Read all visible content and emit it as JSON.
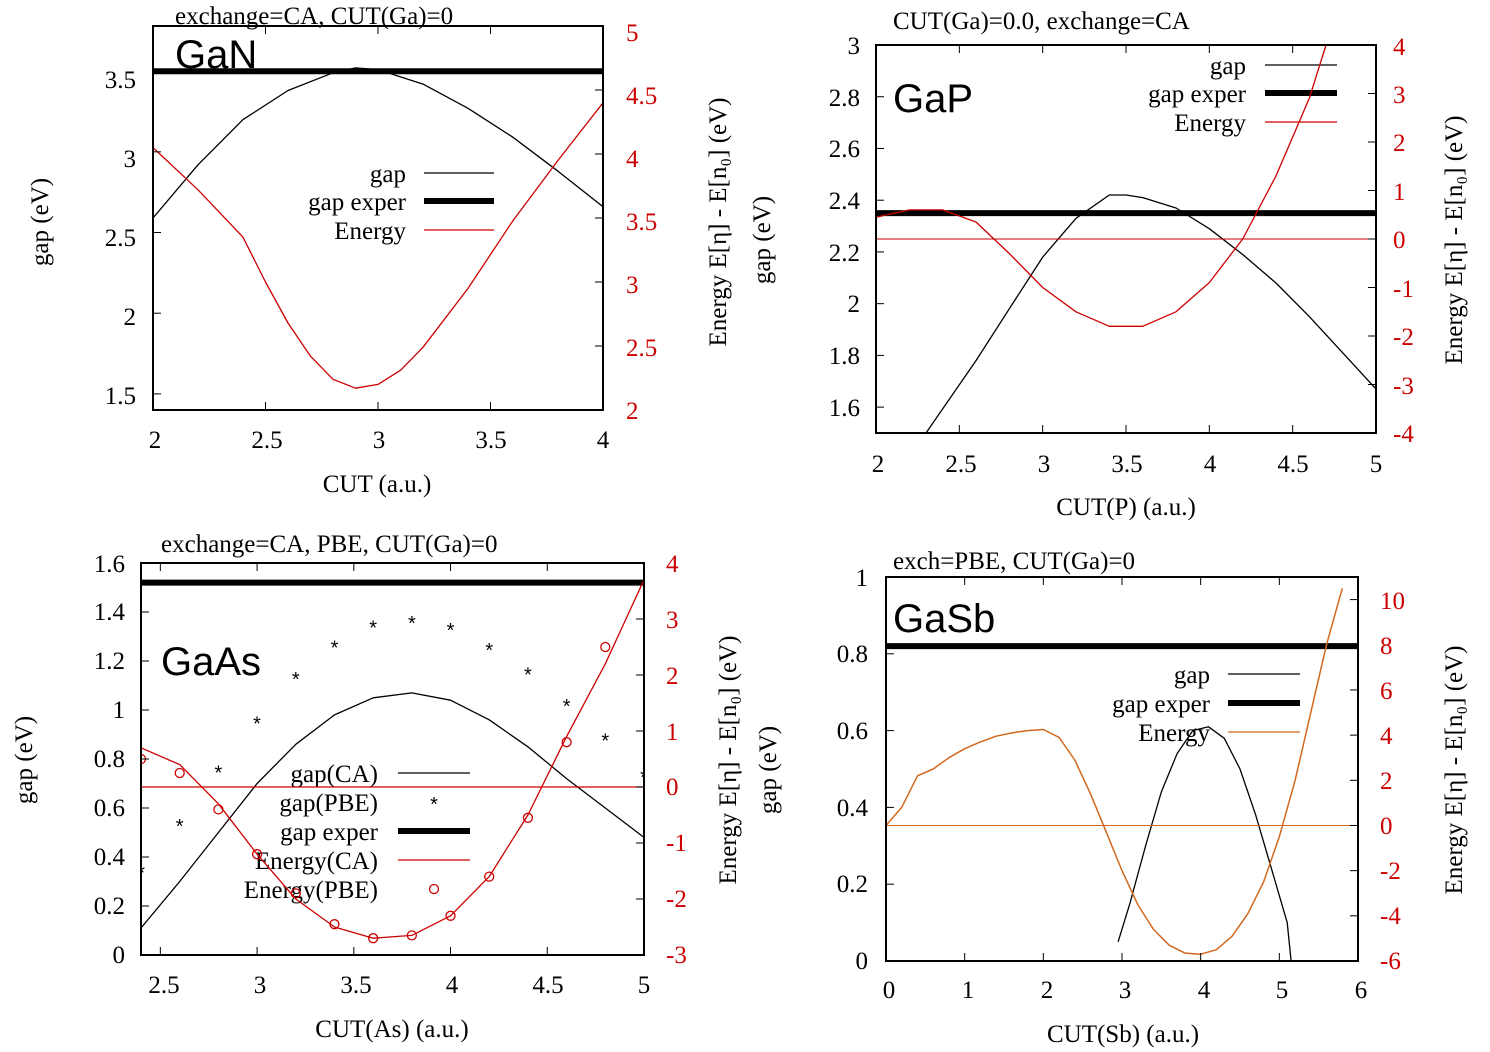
{
  "chart_data": [
    {
      "type": "line",
      "title": "exchange=CA, CUT(Ga)=0",
      "label": "GaN",
      "xlabel": "CUT (a.u.)",
      "ylabel": "gap (eV)",
      "y2label": "Energy E[η] - E[n₀] (eV)",
      "xlim": [
        2,
        4
      ],
      "ylim": [
        1.4,
        3.78
      ],
      "y2lim": [
        2,
        5
      ],
      "xticks": [
        "2",
        "2.5",
        "3",
        "3.5",
        "4"
      ],
      "yticks": [
        "1.5",
        "2",
        "2.5",
        "3",
        "3.5"
      ],
      "y2ticks": [
        "2",
        "2.5",
        "3",
        "3.5",
        "4",
        "4.5",
        "5"
      ],
      "legend_placement": "center-right",
      "colors": {
        "gap": "#000000",
        "gap_exper": "#000000",
        "energy": "#cc0000"
      },
      "series": [
        {
          "name": "gap",
          "axis": "y",
          "x": [
            2.0,
            2.2,
            2.4,
            2.6,
            2.8,
            2.9,
            3.0,
            3.2,
            3.4,
            3.6,
            3.8,
            4.0
          ],
          "y": [
            2.59,
            2.92,
            3.2,
            3.38,
            3.49,
            3.52,
            3.51,
            3.42,
            3.27,
            3.09,
            2.88,
            2.66
          ]
        },
        {
          "name": "gap exper",
          "axis": "y",
          "x": [
            2.0,
            4.0
          ],
          "y": [
            3.5,
            3.5
          ]
        },
        {
          "name": "Energy",
          "axis": "y2",
          "x": [
            2.0,
            2.2,
            2.4,
            2.5,
            2.6,
            2.7,
            2.8,
            2.9,
            3.0,
            3.1,
            3.2,
            3.4,
            3.6,
            3.8,
            4.0
          ],
          "y": [
            4.05,
            3.72,
            3.35,
            3.0,
            2.68,
            2.42,
            2.24,
            2.17,
            2.2,
            2.31,
            2.49,
            2.95,
            3.48,
            3.95,
            4.4
          ]
        }
      ]
    },
    {
      "type": "line",
      "title": "CUT(Ga)=0.0, exchange=CA",
      "label": "GaP",
      "xlabel": "CUT(P) (a.u.)",
      "ylabel": "gap (eV)",
      "y2label": "Energy E[η] - E[n₀] (eV)",
      "xlim": [
        2,
        5
      ],
      "ylim": [
        1.5,
        3.0
      ],
      "y2lim": [
        -4,
        4
      ],
      "xticks": [
        "2",
        "2.5",
        "3",
        "3.5",
        "4",
        "4.5",
        "5"
      ],
      "yticks": [
        "1.6",
        "1.8",
        "2",
        "2.2",
        "2.4",
        "2.6",
        "2.8",
        "3"
      ],
      "y2ticks": [
        "-4",
        "-3",
        "-2",
        "-1",
        "0",
        "1",
        "2",
        "3",
        "4"
      ],
      "legend_placement": "top-right",
      "colors": {
        "gap": "#000000",
        "gap_exper": "#000000",
        "energy": "#cc0000"
      },
      "series": [
        {
          "name": "gap",
          "axis": "y",
          "x": [
            2.3,
            2.6,
            2.8,
            3.0,
            3.2,
            3.4,
            3.5,
            3.6,
            3.8,
            4.0,
            4.2,
            4.4,
            4.6,
            4.8,
            5.0
          ],
          "y": [
            1.5,
            1.78,
            1.98,
            2.18,
            2.33,
            2.42,
            2.42,
            2.41,
            2.37,
            2.29,
            2.19,
            2.08,
            1.95,
            1.81,
            1.67
          ]
        },
        {
          "name": "gap exper",
          "axis": "y",
          "x": [
            2.0,
            5.0
          ],
          "y": [
            2.35,
            2.35
          ]
        },
        {
          "name": "Energy",
          "axis": "y2",
          "x": [
            2.0,
            2.2,
            2.4,
            2.6,
            2.8,
            3.0,
            3.2,
            3.4,
            3.6,
            3.8,
            4.0,
            4.2,
            4.4,
            4.6,
            4.7
          ],
          "y": [
            0.45,
            0.6,
            0.6,
            0.35,
            -0.3,
            -1.0,
            -1.5,
            -1.8,
            -1.8,
            -1.5,
            -0.9,
            0.0,
            1.3,
            2.9,
            4.0
          ]
        },
        {
          "name": "",
          "axis": "y2",
          "x": [
            2.0,
            5.0
          ],
          "y": [
            0.0,
            0.0
          ]
        }
      ]
    },
    {
      "type": "line",
      "title": "exchange=CA, PBE, CUT(Ga)=0",
      "label": "GaAs",
      "xlabel": "CUT(As) (a.u.)",
      "ylabel": "gap (eV)",
      "y2label": "Energy E[η] - E[n₀] (eV)",
      "xlim": [
        2.4,
        5
      ],
      "ylim": [
        0,
        1.6
      ],
      "y2lim": [
        -3,
        4
      ],
      "xticks": [
        "2.5",
        "3",
        "3.5",
        "4",
        "4.5",
        "5"
      ],
      "yticks": [
        "0",
        "0.2",
        "0.4",
        "0.6",
        "0.8",
        "1",
        "1.2",
        "1.4",
        "1.6"
      ],
      "y2ticks": [
        "-3",
        "-2",
        "-1",
        "0",
        "1",
        "2",
        "3",
        "4"
      ],
      "legend_placement": "bottom-center",
      "colors": {
        "gap_ca": "#000000",
        "gap_pbe": "#000000",
        "gap_exper": "#000000",
        "energy_ca": "#cc0000",
        "energy_pbe": "#cc0000"
      },
      "series": [
        {
          "name": "gap(CA)",
          "axis": "y",
          "x": [
            2.4,
            2.6,
            2.8,
            3.0,
            3.2,
            3.4,
            3.6,
            3.8,
            4.0,
            4.2,
            4.4,
            4.6,
            4.8,
            5.0
          ],
          "y": [
            0.11,
            0.3,
            0.5,
            0.7,
            0.86,
            0.98,
            1.05,
            1.07,
            1.04,
            0.96,
            0.85,
            0.72,
            0.6,
            0.48
          ]
        },
        {
          "name": "gap(PBE)",
          "axis": "y",
          "x": [
            2.4,
            2.6,
            2.8,
            3.0,
            3.2,
            3.4,
            3.6,
            3.8,
            4.0,
            4.2,
            4.4,
            4.6,
            4.8,
            5.0
          ],
          "y": [
            0.34,
            0.53,
            0.75,
            0.95,
            1.13,
            1.26,
            1.34,
            1.36,
            1.33,
            1.25,
            1.15,
            1.02,
            0.88,
            0.73
          ]
        },
        {
          "name": "gap exper",
          "axis": "y",
          "x": [
            2.4,
            5.0
          ],
          "y": [
            1.52,
            1.52
          ]
        },
        {
          "name": "Energy(CA)",
          "axis": "y2",
          "x": [
            2.4,
            2.6,
            2.8,
            3.0,
            3.2,
            3.4,
            3.6,
            3.8,
            4.0,
            4.2,
            4.4,
            4.6,
            4.8,
            5.0
          ],
          "y": [
            0.7,
            0.4,
            -0.3,
            -1.2,
            -2.0,
            -2.5,
            -2.7,
            -2.65,
            -2.3,
            -1.6,
            -0.5,
            0.9,
            2.2,
            3.7
          ]
        },
        {
          "name": "Energy(PBE)",
          "axis": "y2",
          "x": [
            2.4,
            2.6,
            2.8,
            3.0,
            3.2,
            3.4,
            3.6,
            3.8,
            4.0,
            4.2,
            4.4,
            4.6,
            4.8
          ],
          "y": [
            0.5,
            0.25,
            -0.4,
            -1.2,
            -1.9,
            -2.45,
            -2.7,
            -2.65,
            -2.3,
            -1.6,
            -0.55,
            0.8,
            2.5
          ]
        },
        {
          "name": "",
          "axis": "y2",
          "x": [
            2.4,
            5.0
          ],
          "y": [
            0.0,
            0.0
          ]
        }
      ]
    },
    {
      "type": "line",
      "title": "exch=PBE, CUT(Ga)=0",
      "label": "GaSb",
      "xlabel": "CUT(Sb) (a.u.)",
      "ylabel": "gap (eV)",
      "y2label": "Energy E[η] - E[n₀] (eV)",
      "xlim": [
        0,
        6
      ],
      "ylim": [
        0,
        1.0
      ],
      "y2lim": [
        -6,
        11
      ],
      "xticks": [
        "0",
        "1",
        "2",
        "3",
        "4",
        "5",
        "6"
      ],
      "yticks": [
        "0",
        "0.2",
        "0.4",
        "0.6",
        "0.8",
        "1"
      ],
      "y2ticks": [
        "-6",
        "-4",
        "-2",
        "0",
        "2",
        "4",
        "6",
        "8",
        "10"
      ],
      "legend_placement": "center-right",
      "colors": {
        "gap": "#000000",
        "gap_exper": "#000000",
        "energy": "#d2691e"
      },
      "series": [
        {
          "name": "gap",
          "axis": "y",
          "x": [
            2.95,
            3.1,
            3.3,
            3.5,
            3.7,
            3.9,
            4.1,
            4.3,
            4.5,
            4.7,
            4.9,
            5.1,
            5.15
          ],
          "y": [
            0.05,
            0.15,
            0.3,
            0.44,
            0.54,
            0.6,
            0.61,
            0.58,
            0.5,
            0.38,
            0.24,
            0.1,
            0.0
          ]
        },
        {
          "name": "gap exper",
          "axis": "y",
          "x": [
            0.0,
            6.0
          ],
          "y": [
            0.82,
            0.82
          ]
        },
        {
          "name": "Energy",
          "axis": "y2",
          "x": [
            0.0,
            0.2,
            0.4,
            0.6,
            0.8,
            1.0,
            1.2,
            1.4,
            1.6,
            1.8,
            2.0,
            2.2,
            2.4,
            2.6,
            2.8,
            3.0,
            3.2,
            3.4,
            3.6,
            3.8,
            4.0,
            4.2,
            4.4,
            4.6,
            4.8,
            5.0,
            5.2,
            5.4,
            5.6,
            5.8
          ],
          "y": [
            0.0,
            0.8,
            2.2,
            2.5,
            3.0,
            3.4,
            3.7,
            3.95,
            4.1,
            4.2,
            4.25,
            3.9,
            2.9,
            1.4,
            -0.3,
            -2.0,
            -3.5,
            -4.6,
            -5.3,
            -5.65,
            -5.7,
            -5.5,
            -4.9,
            -3.9,
            -2.5,
            -0.5,
            2.0,
            5.0,
            8.0,
            10.5
          ]
        },
        {
          "name": "",
          "axis": "y2",
          "x": [
            0.0,
            6.0
          ],
          "y": [
            0.0,
            0.0
          ]
        }
      ]
    }
  ]
}
